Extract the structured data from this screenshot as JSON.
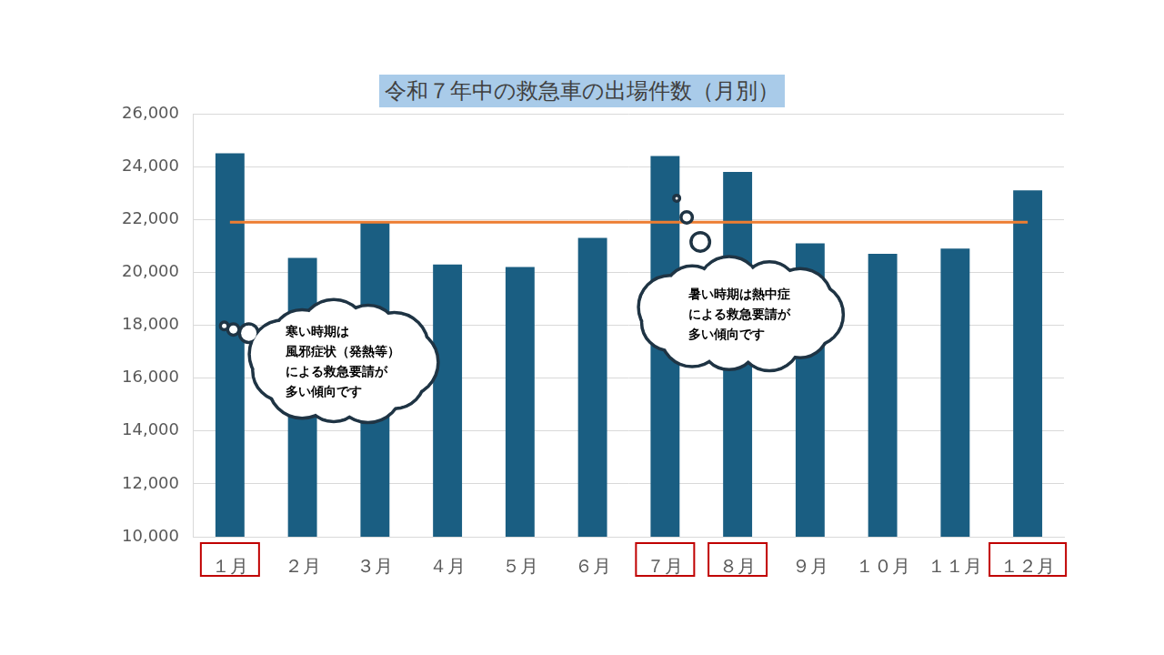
{
  "chart_data": {
    "type": "bar",
    "title": "令和７年中の救急車の出場件数（月別）",
    "categories": [
      "１月",
      "２月",
      "３月",
      "４月",
      "５月",
      "６月",
      "７月",
      "８月",
      "９月",
      "１０月",
      "１１月",
      "１２月"
    ],
    "values": [
      24500,
      20550,
      21900,
      20300,
      20200,
      21300,
      24400,
      23800,
      21100,
      20700,
      20900,
      23100
    ],
    "color": "#1a5e82",
    "ylim": [
      10000,
      26000
    ],
    "yticks": [
      {
        "value": 10000,
        "label": "10,000"
      },
      {
        "value": 12000,
        "label": "12,000"
      },
      {
        "value": 14000,
        "label": "14,000"
      },
      {
        "value": 16000,
        "label": "16,000"
      },
      {
        "value": 18000,
        "label": "18,000"
      },
      {
        "value": 20000,
        "label": "20,000"
      },
      {
        "value": 22000,
        "label": "22,000"
      },
      {
        "value": 24000,
        "label": "24,000"
      },
      {
        "value": 26000,
        "label": "26,000"
      }
    ],
    "grid": true,
    "reference_line": {
      "value": 21900,
      "color": "#ed7d31"
    },
    "boxed_categories": [
      "１月",
      "７月",
      "８月",
      "１２月"
    ],
    "annotations": [
      {
        "text": [
          "寒い時期は",
          "風邪症状（発熱等）",
          "による救急要請が",
          "多い傾向です"
        ]
      },
      {
        "text": [
          "暑い時期は熱中症",
          "による救急要請が",
          "多い傾向です"
        ]
      }
    ]
  }
}
